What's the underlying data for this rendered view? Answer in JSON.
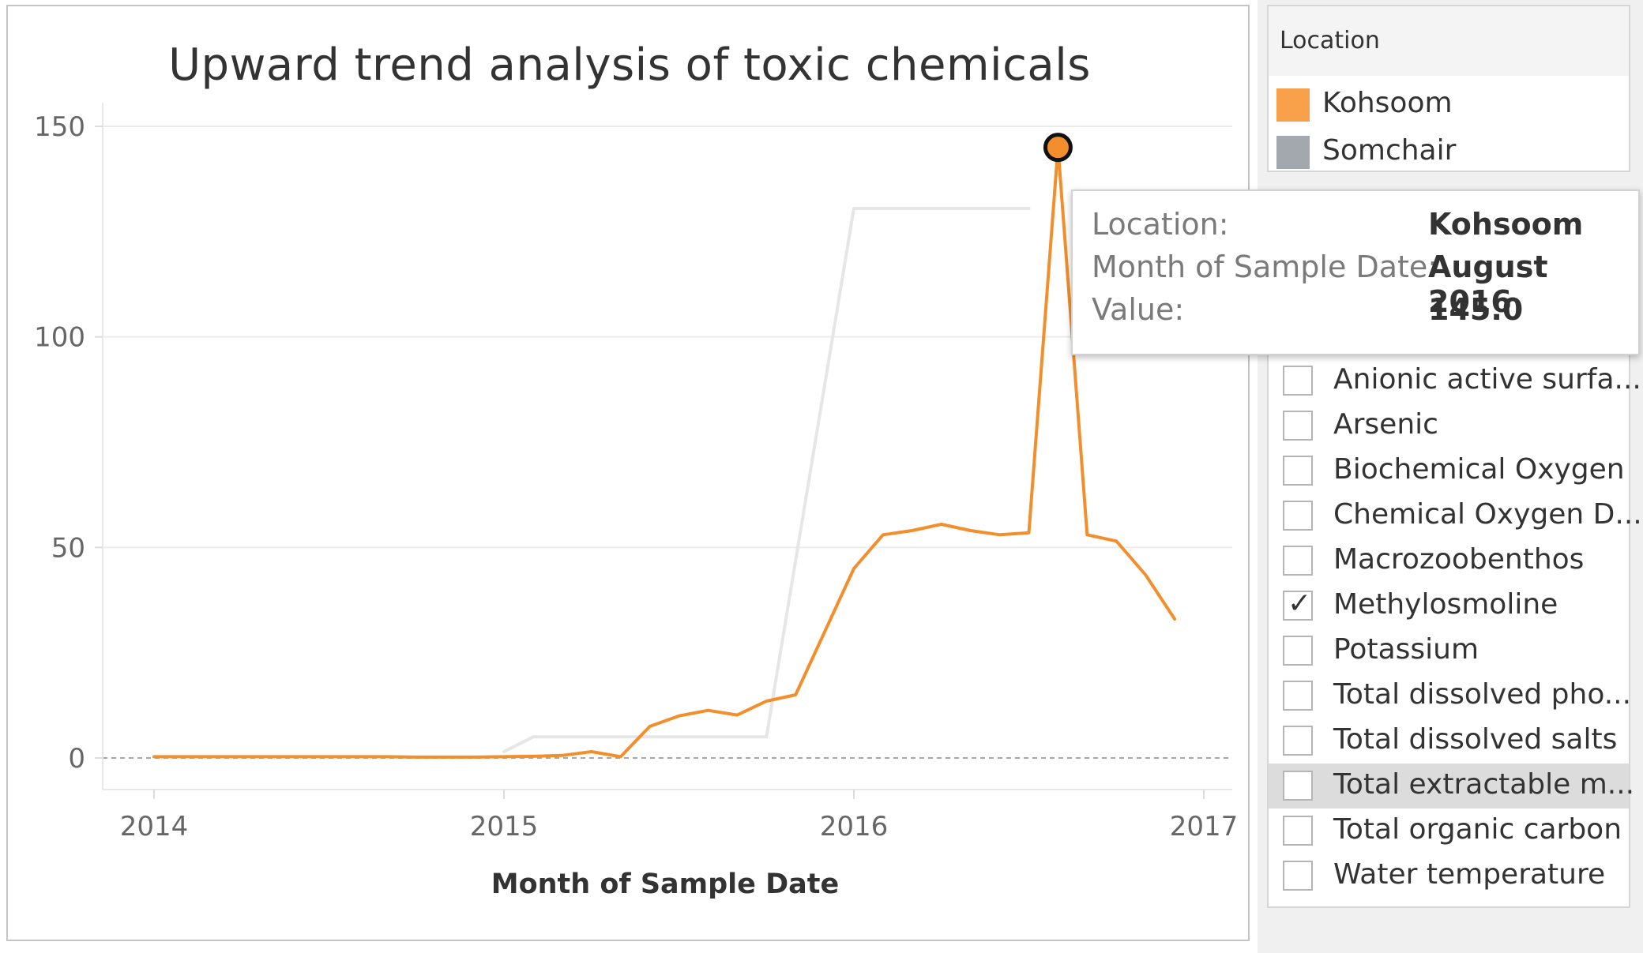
{
  "chart_data": {
    "type": "line",
    "title": "Upward trend analysis of toxic chemicals",
    "xlabel": "Month of Sample Date",
    "ylabel": "",
    "x_ticks": [
      "2014",
      "2015",
      "2016",
      "2017"
    ],
    "y_ticks": [
      "0",
      "50",
      "100",
      "150"
    ],
    "ylim": [
      -8,
      152
    ],
    "xlim": [
      "2013-11",
      "2017-01"
    ],
    "grid": true,
    "legend_position": "right",
    "series": [
      {
        "name": "Somchair",
        "color": "#e6e6e6",
        "points": [
          [
            "2015-01",
            1.5
          ],
          [
            "2015-02",
            5
          ],
          [
            "2015-03",
            5
          ],
          [
            "2015-04",
            5
          ],
          [
            "2015-05",
            5
          ],
          [
            "2015-06",
            5
          ],
          [
            "2015-07",
            5
          ],
          [
            "2015-08",
            5
          ],
          [
            "2015-09",
            5
          ],
          [
            "2015-10",
            5
          ],
          [
            "2016-01",
            130.5
          ],
          [
            "2016-02",
            130.5
          ],
          [
            "2016-03",
            130.5
          ],
          [
            "2016-04",
            130.5
          ],
          [
            "2016-05",
            130.5
          ],
          [
            "2016-06",
            130.5
          ],
          [
            "2016-07",
            130.5
          ]
        ]
      },
      {
        "name": "Kohsoom",
        "color": "#f28e2b",
        "points": [
          [
            "2014-01",
            0.3
          ],
          [
            "2014-02",
            0.3
          ],
          [
            "2014-03",
            0.3
          ],
          [
            "2014-04",
            0.3
          ],
          [
            "2014-05",
            0.3
          ],
          [
            "2014-06",
            0.3
          ],
          [
            "2014-07",
            0.3
          ],
          [
            "2014-08",
            0.3
          ],
          [
            "2014-09",
            0.3
          ],
          [
            "2014-10",
            0.2
          ],
          [
            "2014-11",
            0.2
          ],
          [
            "2014-12",
            0.2
          ],
          [
            "2015-01",
            0.3
          ],
          [
            "2015-02",
            0.4
          ],
          [
            "2015-03",
            0.6
          ],
          [
            "2015-04",
            1.5
          ],
          [
            "2015-05",
            0.3
          ],
          [
            "2015-06",
            7.5
          ],
          [
            "2015-07",
            10
          ],
          [
            "2015-08",
            11.3
          ],
          [
            "2015-09",
            10.2
          ],
          [
            "2015-10",
            13.5
          ],
          [
            "2015-11",
            15
          ],
          [
            "2015-12",
            30
          ],
          [
            "2016-01",
            45
          ],
          [
            "2016-02",
            53
          ],
          [
            "2016-03",
            54
          ],
          [
            "2016-04",
            55.5
          ],
          [
            "2016-05",
            54
          ],
          [
            "2016-06",
            53
          ],
          [
            "2016-07",
            53.5
          ],
          [
            "2016-08",
            145
          ],
          [
            "2016-09",
            53
          ],
          [
            "2016-10",
            51.5
          ],
          [
            "2016-11",
            43.5
          ],
          [
            "2016-12",
            33
          ]
        ]
      }
    ],
    "highlight": {
      "series": "Kohsoom",
      "x": "2016-08",
      "y": 145
    }
  },
  "legend": {
    "title": "Location",
    "items": [
      {
        "label": "Kohsoom",
        "color": "#f9a04b"
      },
      {
        "label": "Somchair",
        "color": "#a3a7ae"
      }
    ]
  },
  "tooltip": {
    "rows": [
      {
        "key": "Location:",
        "value": "Kohsoom"
      },
      {
        "key": "Month of Sample Date:",
        "value": "August 2016"
      },
      {
        "key": "Value:",
        "value": "145.0"
      }
    ]
  },
  "filter": {
    "items": [
      {
        "label": "Anionic active surfa...",
        "checked": false
      },
      {
        "label": "Arsenic",
        "checked": false
      },
      {
        "label": "Biochemical Oxygen",
        "checked": false
      },
      {
        "label": "Chemical Oxygen D...",
        "checked": false
      },
      {
        "label": "Macrozoobenthos",
        "checked": false
      },
      {
        "label": "Methylosmoline",
        "checked": true
      },
      {
        "label": "Potassium",
        "checked": false
      },
      {
        "label": "Total dissolved pho...",
        "checked": false
      },
      {
        "label": "Total dissolved salts",
        "checked": false
      },
      {
        "label": "Total extractable m...",
        "checked": false,
        "hover": true
      },
      {
        "label": "Total organic carbon",
        "checked": false
      },
      {
        "label": "Water temperature",
        "checked": false
      }
    ]
  }
}
